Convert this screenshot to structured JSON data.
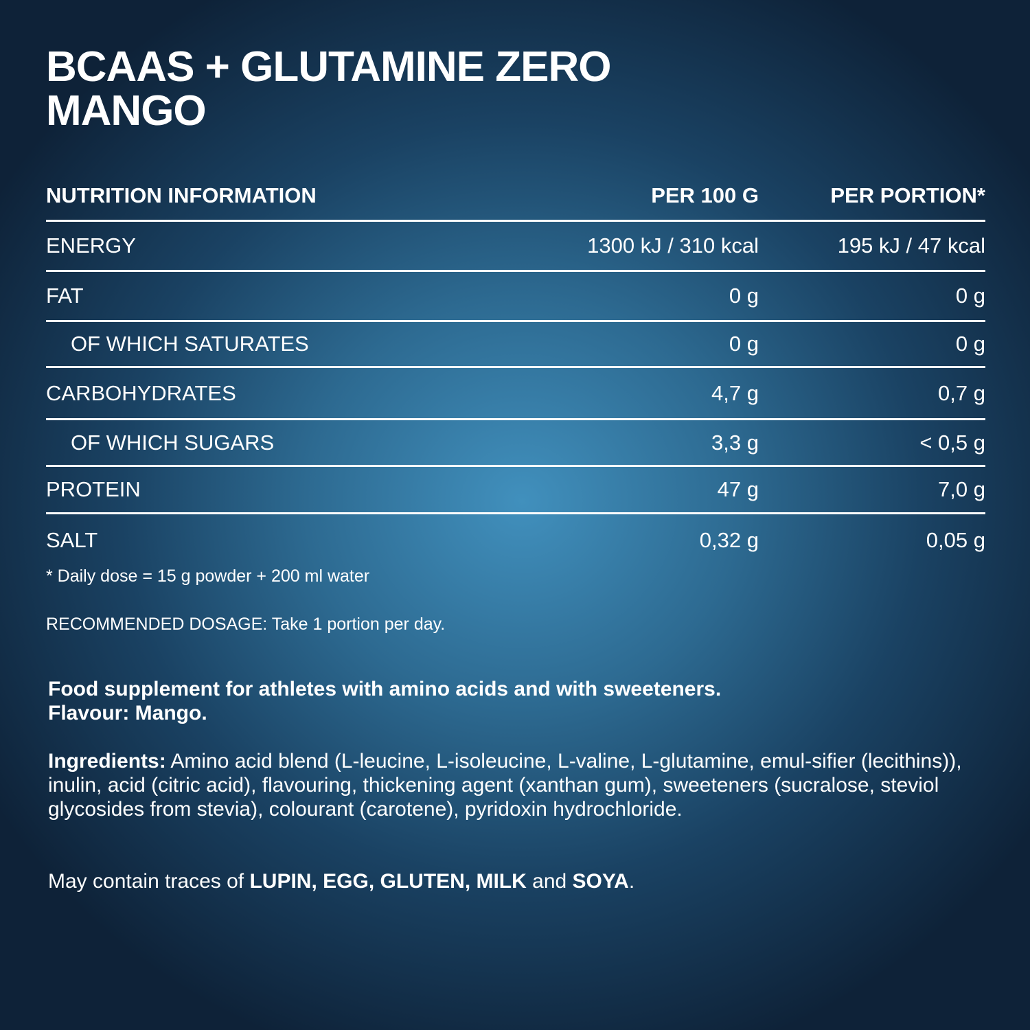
{
  "title": {
    "line1": "BCAAS + GLUTAMINE ZERO",
    "line2": "MANGO"
  },
  "table": {
    "headers": [
      "NUTRITION INFORMATION",
      "PER 100 G",
      "PER PORTION*"
    ],
    "rows": [
      {
        "label": "ENERGY",
        "per100": "1300 kJ / 310 kcal",
        "portion": "195 kJ / 47 kcal"
      },
      {
        "label": "FAT",
        "per100": "0 g",
        "portion": "0 g"
      },
      {
        "label": "OF WHICH SATURATES",
        "per100": "0 g",
        "portion": "0 g"
      },
      {
        "label": "CARBOHYDRATES",
        "per100": "4,7 g",
        "portion": "0,7 g"
      },
      {
        "label": "OF WHICH SUGARS",
        "per100": "3,3 g",
        "portion": "< 0,5 g"
      },
      {
        "label": "PROTEIN",
        "per100": "47 g",
        "portion": "7,0 g"
      },
      {
        "label": "SALT",
        "per100": "0,32 g",
        "portion": "0,05 g"
      }
    ]
  },
  "footnote": "* Daily dose = 15 g powder + 200 ml water",
  "dosage": "RECOMMENDED DOSAGE: Take 1 portion per day.",
  "description": {
    "line1": "Food supplement for athletes with amino acids and with sweeteners.",
    "line2": "Flavour: Mango."
  },
  "ingredients": {
    "label": "Ingredients:",
    "text": " Amino acid blend (L-leucine, L-isoleucine, L-valine, L-glutamine, emul-sifier (lecithins)), inulin, acid (citric acid), flavouring, thickening agent (xanthan gum), sweeteners (sucralose, steviol glycosides from stevia), colourant (carotene), pyridoxin hydrochloride."
  },
  "allergens": {
    "prefix": "May contain traces of ",
    "bold1": "LUPIN, EGG, GLUTEN, MILK",
    "mid": " and ",
    "bold2": "SOYA",
    "suffix": "."
  }
}
